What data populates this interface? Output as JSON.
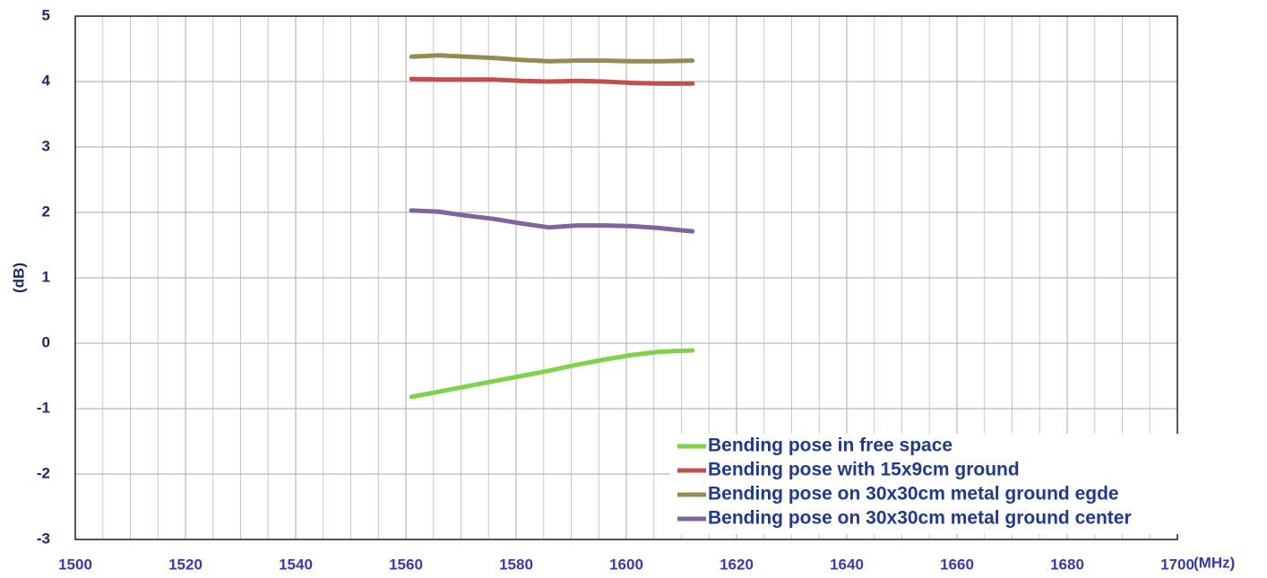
{
  "chart_data": {
    "type": "line",
    "x_label": "(MHz)",
    "y_label": "(dB)",
    "x": [
      1561,
      1566,
      1571,
      1576,
      1581,
      1586,
      1591,
      1596,
      1601,
      1606,
      1612
    ],
    "series": [
      {
        "name": "Bending pose in free space",
        "color": "#7fd34a",
        "values": [
          -0.82,
          -0.74,
          -0.66,
          -0.58,
          -0.5,
          -0.42,
          -0.33,
          -0.25,
          -0.18,
          -0.13,
          -0.11
        ]
      },
      {
        "name": "Bending pose with 15x9cm ground",
        "color": "#c0504d",
        "values": [
          4.04,
          4.03,
          4.03,
          4.03,
          4.01,
          4.0,
          4.01,
          4.0,
          3.98,
          3.97,
          3.97
        ]
      },
      {
        "name": "Bending pose on 30x30cm metal ground egde",
        "color": "#948a54",
        "values": [
          4.38,
          4.4,
          4.38,
          4.36,
          4.33,
          4.31,
          4.32,
          4.32,
          4.31,
          4.31,
          4.32
        ]
      },
      {
        "name": "Bending pose on 30x30cm metal ground center",
        "color": "#8064a2",
        "values": [
          2.03,
          2.01,
          1.95,
          1.9,
          1.83,
          1.77,
          1.8,
          1.8,
          1.79,
          1.76,
          1.71
        ]
      }
    ],
    "xlim": [
      1500,
      1700
    ],
    "xticks": [
      1500,
      1520,
      1540,
      1560,
      1580,
      1600,
      1620,
      1640,
      1660,
      1680,
      1700
    ],
    "ylim": [
      -3,
      5
    ],
    "yticks": [
      -3,
      -2,
      -1,
      0,
      1,
      2,
      3,
      4,
      5
    ],
    "grid": true,
    "xgrid_step": 5,
    "legend": "lower right"
  }
}
